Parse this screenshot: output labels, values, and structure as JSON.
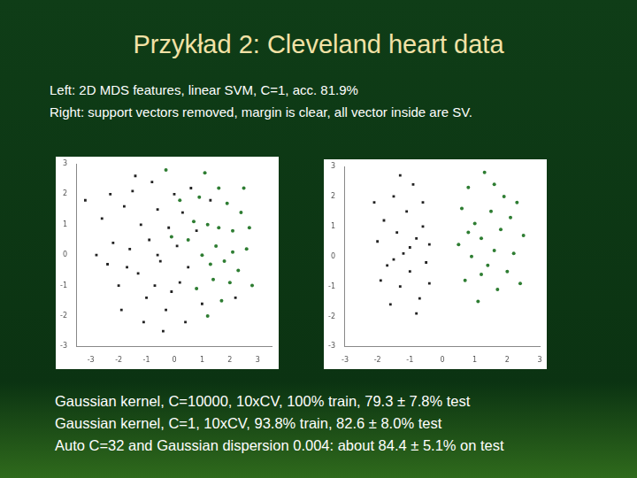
{
  "title": "Przykład 2: Cleveland heart data",
  "subtitle_lines": [
    "Left: 2D MDS features, linear SVM, C=1, acc. 81.9%",
    "Right: support vectors removed, margin is clear, all vector inside are SV."
  ],
  "bottom_lines": [
    "Gaussian kernel, C=10000, 10xCV, 100% train, 79.3 ± 7.8% test",
    "Gaussian kernel, C=1, 10xCV, 93.8% train, 82.6 ± 8.0% test",
    "Auto C=32 and Gaussian dispersion 0.004:  about 84.4 ± 5.1% on test"
  ],
  "chart_data": [
    {
      "type": "scatter",
      "grid": false,
      "xlim": [
        -3.5,
        3.5
      ],
      "xticks": [
        -3,
        -2,
        -1,
        0,
        1,
        2,
        3
      ],
      "ylim": [
        -3,
        3
      ],
      "yticks": [
        -3,
        -2,
        -1,
        0,
        1,
        2,
        3
      ],
      "series": [
        {
          "color": "#222222",
          "marker": "square",
          "x": [
            -2.6,
            -2.2,
            -2.4,
            -2.0,
            -1.8,
            -1.5,
            -1.2,
            -1.6,
            -1.3,
            -1.0,
            -0.8,
            -0.6,
            -0.9,
            -0.5,
            -0.7,
            -0.3,
            -0.2,
            0.0,
            0.1,
            0.2,
            -1.9,
            -1.1,
            -0.4,
            0.3,
            0.5,
            -2.8,
            -1.4,
            -0.1,
            0.6,
            -2.3,
            0.8,
            -0.6,
            -1.7,
            1.0,
            0.4,
            -3.2,
            2.2,
            1.3
          ],
          "values": [
            1.2,
            0.4,
            -0.3,
            -1.0,
            1.6,
            2.1,
            1.0,
            0.2,
            -0.6,
            -1.4,
            2.4,
            1.5,
            0.5,
            -0.2,
            -1.0,
            -1.8,
            0.9,
            2.0,
            0.3,
            -0.9,
            -1.8,
            -2.2,
            -2.5,
            1.4,
            -0.4,
            0.0,
            2.6,
            -1.2,
            2.2,
            2.0,
            0.8,
            0.0,
            -0.4,
            -1.6,
            -2.2,
            1.8,
            -1.4,
            1.8
          ]
        },
        {
          "color": "#2e7d32",
          "marker": "circle",
          "x": [
            0.9,
            1.2,
            1.5,
            1.8,
            2.1,
            2.4,
            1.6,
            1.0,
            1.4,
            2.0,
            2.6,
            1.1,
            0.7,
            1.9,
            2.3,
            0.5,
            1.7,
            2.8,
            1.3,
            0.2,
            -0.3,
            2.5,
            0.8,
            1.6,
            2.1,
            -0.1,
            1.2,
            2.7
          ],
          "values": [
            1.9,
            1.0,
            0.3,
            -0.2,
            0.8,
            1.4,
            2.2,
            0.0,
            -0.8,
            -0.9,
            0.2,
            2.7,
            1.1,
            1.7,
            -0.5,
            0.5,
            -1.5,
            -1.0,
            -0.3,
            1.8,
            2.8,
            2.2,
            -1.1,
            0.9,
            0.1,
            0.6,
            -2.0,
            0.9
          ]
        }
      ]
    },
    {
      "type": "scatter",
      "grid": false,
      "xlim": [
        -3,
        3
      ],
      "xticks": [
        -3,
        -2,
        -1,
        0,
        1,
        2,
        3
      ],
      "ylim": [
        -3,
        3
      ],
      "yticks": [
        -3,
        -2,
        -1,
        0,
        1,
        2,
        3
      ],
      "series": [
        {
          "color": "#222222",
          "marker": "square",
          "x": [
            -2.0,
            -1.8,
            -1.7,
            -1.5,
            -1.4,
            -1.3,
            -1.2,
            -1.1,
            -1.0,
            -0.9,
            -0.8,
            -0.7,
            -0.6,
            -0.5,
            -0.4,
            -1.6,
            -1.9,
            -0.8,
            -1.3,
            -0.6,
            -2.1,
            -1.0,
            -0.4,
            -1.5
          ],
          "values": [
            0.5,
            1.2,
            -0.3,
            2.0,
            0.8,
            -1.0,
            0.1,
            1.5,
            -0.5,
            2.4,
            0.6,
            -1.4,
            1.0,
            -0.2,
            0.4,
            -1.6,
            -0.8,
            -1.9,
            2.7,
            1.8,
            1.8,
            0.3,
            -0.9,
            -0.1
          ]
        },
        {
          "color": "#2e7d32",
          "marker": "circle",
          "x": [
            0.5,
            0.6,
            0.7,
            0.8,
            0.9,
            1.0,
            1.1,
            1.2,
            1.3,
            1.4,
            1.5,
            1.6,
            1.7,
            1.8,
            1.9,
            2.0,
            2.1,
            2.2,
            2.4,
            2.5,
            1.2,
            0.8,
            1.6,
            2.3
          ],
          "values": [
            0.4,
            1.6,
            -0.8,
            2.3,
            0.0,
            1.1,
            -1.5,
            0.6,
            2.8,
            -0.3,
            1.5,
            0.2,
            -1.1,
            0.9,
            2.0,
            -0.5,
            1.3,
            0.1,
            -0.9,
            0.7,
            -0.6,
            0.8,
            2.4,
            1.8
          ]
        }
      ]
    }
  ]
}
